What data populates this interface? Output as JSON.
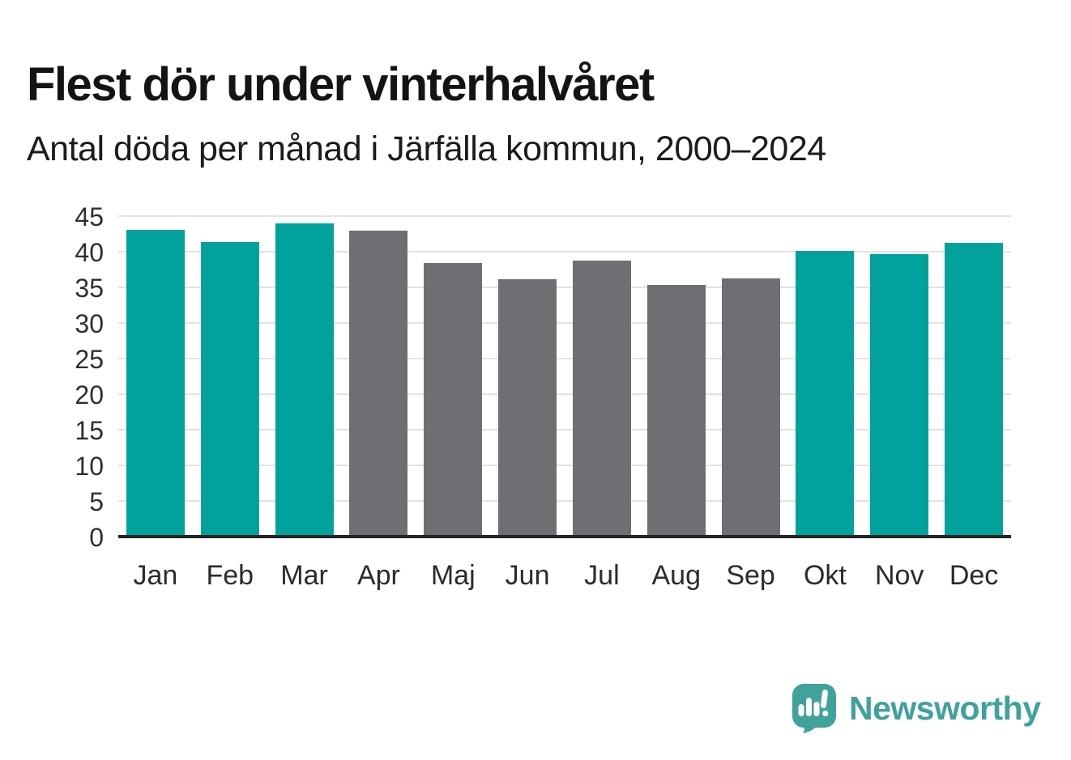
{
  "header": {
    "title": "Flest dör under vinterhalvåret",
    "subtitle": "Antal döda per månad i Järfälla kommun, 2000–2024"
  },
  "chart_data": {
    "type": "bar",
    "title": "Flest dör under vinterhalvåret",
    "subtitle": "Antal döda per månad i Järfälla kommun, 2000–2024",
    "categories": [
      "Jan",
      "Feb",
      "Mar",
      "Apr",
      "Maj",
      "Jun",
      "Jul",
      "Aug",
      "Sep",
      "Okt",
      "Nov",
      "Dec"
    ],
    "values": [
      43.1,
      41.4,
      44.0,
      43.0,
      38.4,
      36.1,
      38.7,
      35.3,
      36.3,
      40.1,
      39.7,
      41.3
    ],
    "bar_color_keys": [
      "winter",
      "winter",
      "winter",
      "summer",
      "summer",
      "summer",
      "summer",
      "summer",
      "summer",
      "winter",
      "winter",
      "winter"
    ],
    "colors": {
      "winter": "#00a29b",
      "summer": "#6e6e73"
    },
    "ylim": [
      0,
      45
    ],
    "yticks": [
      0,
      5,
      10,
      15,
      20,
      25,
      30,
      35,
      40,
      45
    ],
    "grid": "horizontal-light",
    "legend": "none",
    "xlabel": "",
    "ylabel": ""
  },
  "branding": {
    "name": "Newsworthy",
    "color": "#3fa29b",
    "icon": "newsworthy-speech-bubble-bar-chart-icon"
  }
}
